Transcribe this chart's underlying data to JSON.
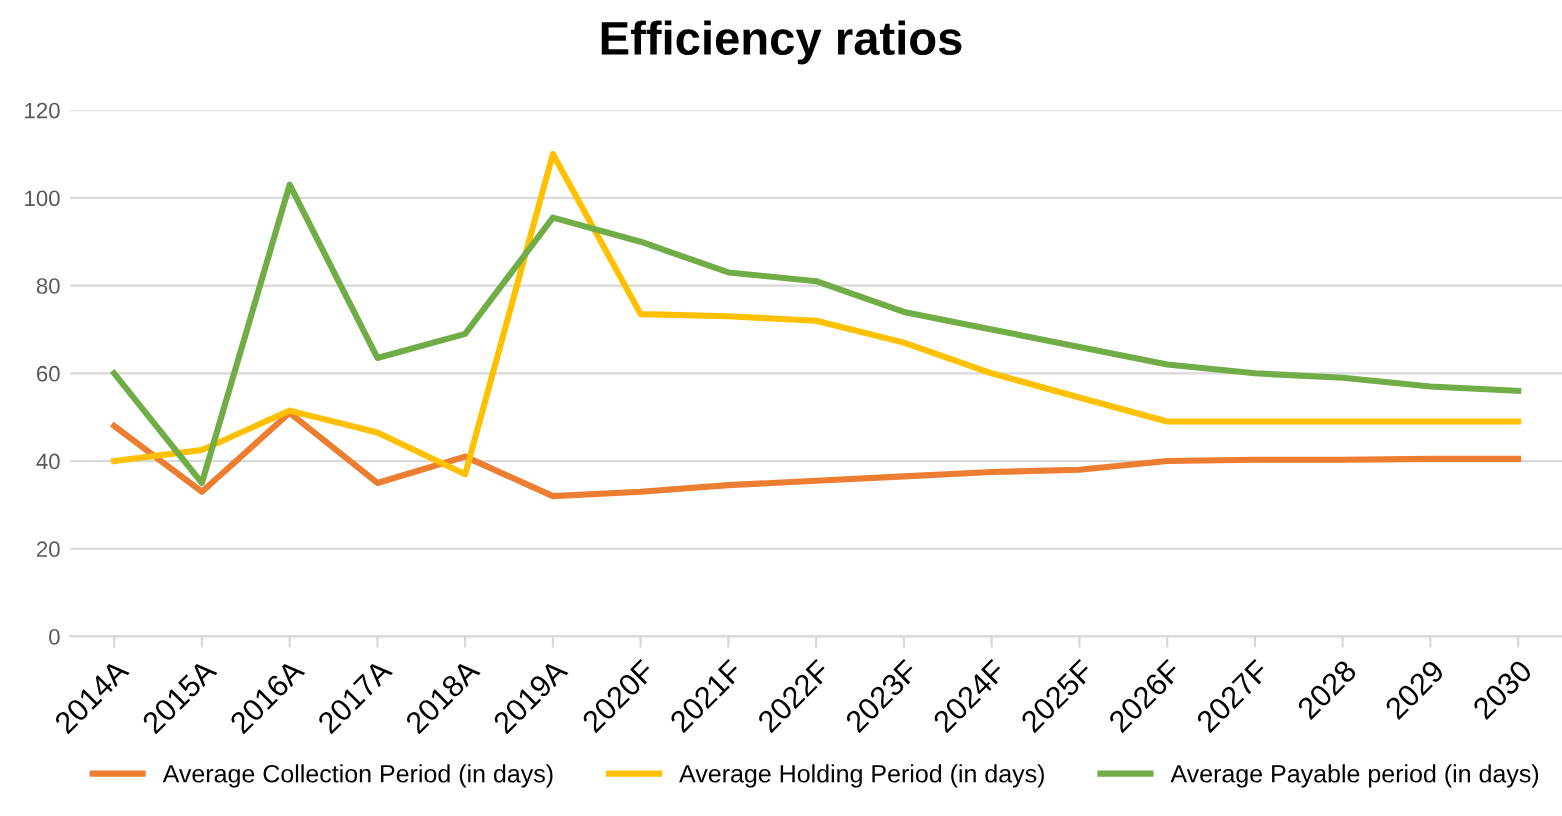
{
  "chart_data": {
    "type": "line",
    "title": "Efficiency ratios",
    "categories": [
      "2014A",
      "2015A",
      "2016A",
      "2017A",
      "2018A",
      "2019A",
      "2020F",
      "2021F",
      "2022F",
      "2023F",
      "2024F",
      "2025F",
      "2026F",
      "2027F",
      "2028",
      "2029",
      "2030"
    ],
    "series": [
      {
        "name": "Average Collection Period (in days)",
        "color": "#ed7d31",
        "values": [
          48,
          33,
          51,
          35,
          41,
          32,
          33,
          34.5,
          35.5,
          36.5,
          37.5,
          38,
          40,
          40.3,
          40.3,
          40.5,
          40.5
        ]
      },
      {
        "name": "Average Holding Period (in days)",
        "color": "#ffc000",
        "values": [
          40,
          42.5,
          51.5,
          46.5,
          37,
          110,
          73.5,
          73,
          72,
          67,
          60,
          54.5,
          49,
          49,
          49,
          49,
          49
        ]
      },
      {
        "name": "Average Payable period (in days)",
        "color": "#70ad47",
        "values": [
          60,
          35,
          103,
          63.5,
          69,
          95.5,
          90,
          83,
          81,
          74,
          70,
          66,
          62,
          60,
          59,
          57,
          56
        ]
      }
    ],
    "ylim": [
      0,
      120
    ],
    "yticks": [
      0,
      20,
      40,
      60,
      80,
      100,
      120
    ],
    "grid": "y",
    "legend": "bottom",
    "marker": "none",
    "line_style": "solid"
  }
}
